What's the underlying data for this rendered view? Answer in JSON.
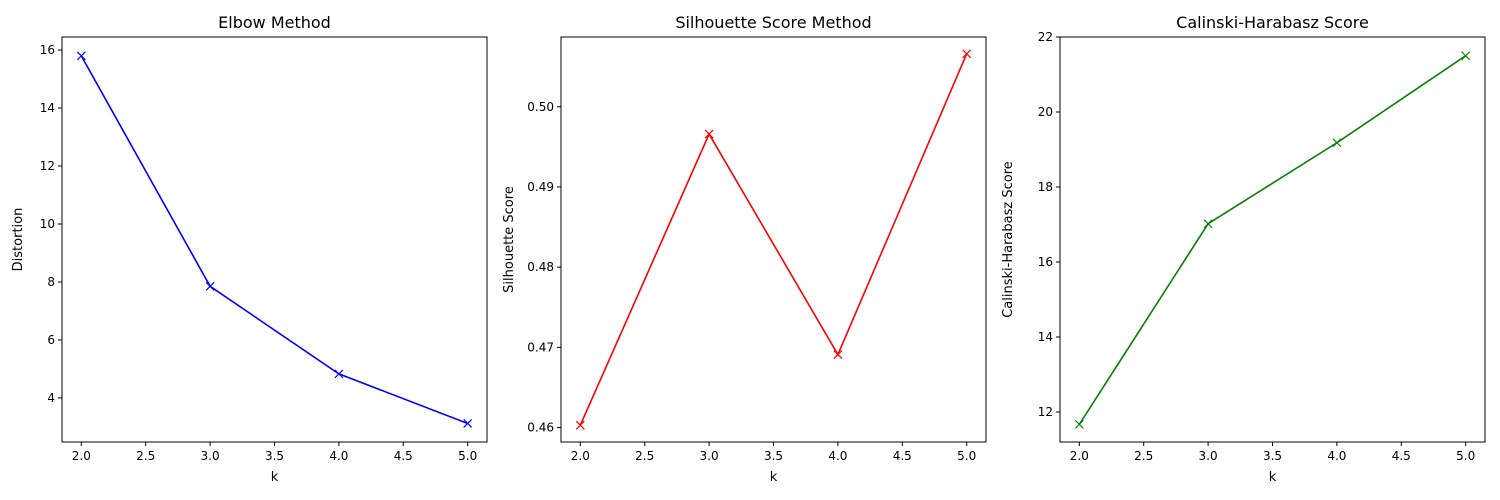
{
  "chart_data": [
    {
      "type": "line",
      "title": "Elbow Method",
      "xlabel": "k",
      "ylabel": "Distortion",
      "x": [
        2,
        3,
        4,
        5
      ],
      "series": [
        {
          "values": [
            15.8,
            7.85,
            4.83,
            3.12
          ],
          "color": "#0000ff",
          "marker": "x"
        }
      ],
      "xlim": [
        1.85,
        5.15
      ],
      "ylim": [
        2.48,
        16.45
      ],
      "xticks": [
        2.0,
        2.5,
        3.0,
        3.5,
        4.0,
        4.5,
        5.0
      ],
      "xtick_labels": [
        "2.0",
        "2.5",
        "3.0",
        "3.5",
        "4.0",
        "4.5",
        "5.0"
      ],
      "yticks": [
        4,
        6,
        8,
        10,
        12,
        14,
        16
      ],
      "ytick_labels": [
        "4",
        "6",
        "8",
        "10",
        "12",
        "14",
        "16"
      ],
      "grid": false,
      "legend": "none"
    },
    {
      "type": "line",
      "title": "Silhouette Score Method",
      "xlabel": "k",
      "ylabel": "Silhouette Score",
      "x": [
        2,
        3,
        4,
        5
      ],
      "series": [
        {
          "values": [
            0.4603,
            0.4966,
            0.4691,
            0.5066
          ],
          "color": "#ff0000",
          "marker": "x"
        }
      ],
      "xlim": [
        1.85,
        5.15
      ],
      "ylim": [
        0.4582,
        0.5087
      ],
      "xticks": [
        2.0,
        2.5,
        3.0,
        3.5,
        4.0,
        4.5,
        5.0
      ],
      "xtick_labels": [
        "2.0",
        "2.5",
        "3.0",
        "3.5",
        "4.0",
        "4.5",
        "5.0"
      ],
      "yticks": [
        0.46,
        0.47,
        0.48,
        0.49,
        0.5
      ],
      "ytick_labels": [
        "0.46",
        "0.47",
        "0.48",
        "0.49",
        "0.50"
      ],
      "grid": false,
      "legend": "none"
    },
    {
      "type": "line",
      "title": "Calinski-Harabasz Score",
      "xlabel": "k",
      "ylabel": "Calinski-Harabasz Score",
      "x": [
        2,
        3,
        4,
        5
      ],
      "series": [
        {
          "values": [
            11.67,
            17.02,
            19.18,
            21.5
          ],
          "color": "#008000",
          "marker": "x"
        }
      ],
      "xlim": [
        1.85,
        5.15
      ],
      "ylim": [
        11.2,
        22.0
      ],
      "xticks": [
        2.0,
        2.5,
        3.0,
        3.5,
        4.0,
        4.5,
        5.0
      ],
      "xtick_labels": [
        "2.0",
        "2.5",
        "3.0",
        "3.5",
        "4.0",
        "4.5",
        "5.0"
      ],
      "yticks": [
        12,
        14,
        16,
        18,
        20,
        22
      ],
      "ytick_labels": [
        "12",
        "14",
        "16",
        "18",
        "20",
        "22"
      ],
      "grid": false,
      "legend": "none"
    }
  ]
}
